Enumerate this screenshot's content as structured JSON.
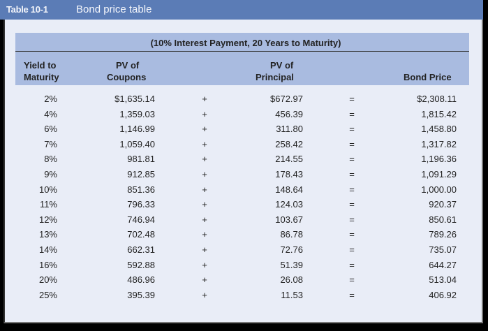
{
  "title": {
    "number": "Table 10-1",
    "text": "Bond price table"
  },
  "table": {
    "spanning_header": "(10% Interest Payment, 20 Years to Maturity)",
    "columns": [
      {
        "line1": "Yield to",
        "line2": "Maturity"
      },
      {
        "line1": "PV of",
        "line2": "Coupons"
      },
      {
        "line1": "PV of",
        "line2": "Principal"
      },
      {
        "line1": "",
        "line2": "Bond Price"
      }
    ],
    "operators": {
      "plus": "+",
      "equals": "="
    },
    "rows": [
      {
        "ytm": "2%",
        "coupons": "$1,635.14",
        "principal": "$672.97",
        "price": "$2,308.11"
      },
      {
        "ytm": "4%",
        "coupons": "1,359.03",
        "principal": "456.39",
        "price": "1,815.42"
      },
      {
        "ytm": "6%",
        "coupons": "1,146.99",
        "principal": "311.80",
        "price": "1,458.80"
      },
      {
        "ytm": "7%",
        "coupons": "1,059.40",
        "principal": "258.42",
        "price": "1,317.82"
      },
      {
        "ytm": "8%",
        "coupons": "981.81",
        "principal": "214.55",
        "price": "1,196.36"
      },
      {
        "ytm": "9%",
        "coupons": "912.85",
        "principal": "178.43",
        "price": "1,091.29"
      },
      {
        "ytm": "10%",
        "coupons": "851.36",
        "principal": "148.64",
        "price": "1,000.00"
      },
      {
        "ytm": "11%",
        "coupons": "796.33",
        "principal": "124.03",
        "price": "920.37"
      },
      {
        "ytm": "12%",
        "coupons": "746.94",
        "principal": "103.67",
        "price": "850.61"
      },
      {
        "ytm": "13%",
        "coupons": "702.48",
        "principal": "86.78",
        "price": "789.26"
      },
      {
        "ytm": "14%",
        "coupons": "662.31",
        "principal": "72.76",
        "price": "735.07"
      },
      {
        "ytm": "16%",
        "coupons": "592.88",
        "principal": "51.39",
        "price": "644.27"
      },
      {
        "ytm": "20%",
        "coupons": "486.96",
        "principal": "26.08",
        "price": "513.04"
      },
      {
        "ytm": "25%",
        "coupons": "395.39",
        "principal": "11.53",
        "price": "406.92"
      }
    ]
  },
  "colors": {
    "title_bar": "#5b7cb6",
    "header_band": "#a9bbe0",
    "panel": "#e9edf7"
  }
}
